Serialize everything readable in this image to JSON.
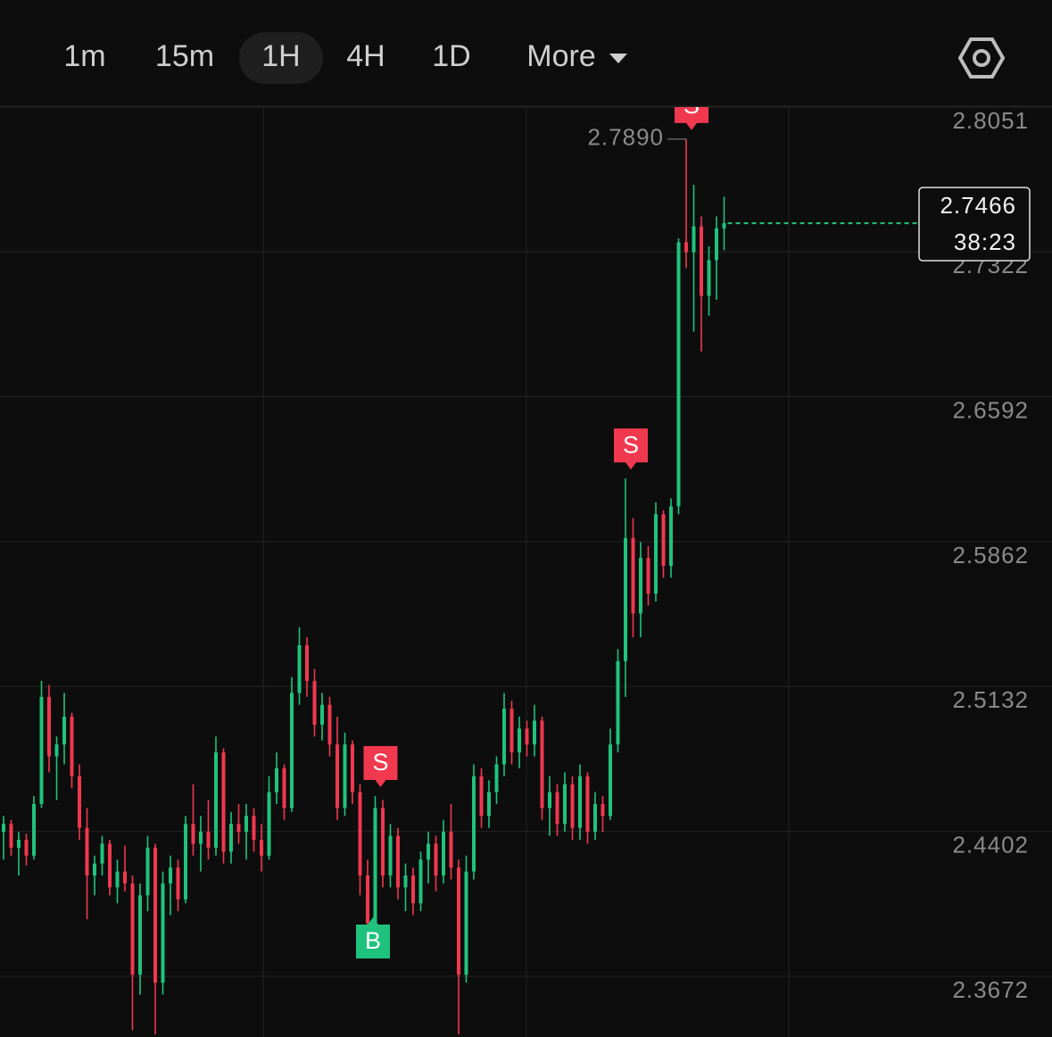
{
  "toolbar": {
    "intervals": [
      "1m",
      "15m",
      "1H",
      "4H",
      "1D"
    ],
    "selected": "1H",
    "more": "More"
  },
  "chart_data": {
    "type": "candlestick",
    "up_color": "#20c27c",
    "down_color": "#f0384f",
    "grid": true,
    "ylim": [
      2.3357,
      2.806
    ],
    "yticks": [
      2.8051,
      2.7322,
      2.6592,
      2.5862,
      2.5132,
      2.4402,
      2.3672
    ],
    "candles": {
      "open": [
        2.44,
        2.444,
        2.432,
        2.436,
        2.428,
        2.454,
        2.508,
        2.478,
        2.484,
        2.498,
        2.468,
        2.442,
        2.418,
        2.424,
        2.434,
        2.412,
        2.42,
        2.414,
        2.368,
        2.408,
        2.432,
        2.364,
        2.414,
        2.422,
        2.406,
        2.444,
        2.434,
        2.44,
        2.432,
        2.48,
        2.43,
        2.444,
        2.44,
        2.448,
        2.436,
        2.428,
        2.46,
        2.472,
        2.452,
        2.51,
        2.534,
        2.516,
        2.494,
        2.504,
        2.484,
        2.452,
        2.484,
        2.46,
        2.418,
        2.394,
        2.452,
        2.418,
        2.438,
        2.412,
        2.418,
        2.404,
        2.426,
        2.434,
        2.418,
        2.44,
        2.422,
        2.368,
        2.42,
        2.468,
        2.448,
        2.46,
        2.474,
        2.502,
        2.48,
        2.492,
        2.484,
        2.496,
        2.452,
        2.46,
        2.444,
        2.464,
        2.442,
        2.468,
        2.44,
        2.454,
        2.448,
        2.484,
        2.526,
        2.588,
        2.55,
        2.578,
        2.56,
        2.6,
        2.574,
        2.604,
        2.737,
        2.732,
        2.745,
        2.71,
        2.728,
        2.744
      ],
      "high": [
        2.448,
        2.446,
        2.44,
        2.439,
        2.458,
        2.516,
        2.514,
        2.488,
        2.51,
        2.5,
        2.474,
        2.452,
        2.428,
        2.438,
        2.436,
        2.426,
        2.433,
        2.418,
        2.414,
        2.438,
        2.434,
        2.42,
        2.428,
        2.426,
        2.448,
        2.464,
        2.448,
        2.456,
        2.488,
        2.482,
        2.45,
        2.454,
        2.454,
        2.452,
        2.444,
        2.468,
        2.48,
        2.474,
        2.518,
        2.543,
        2.538,
        2.522,
        2.51,
        2.508,
        2.498,
        2.49,
        2.486,
        2.464,
        2.426,
        2.458,
        2.456,
        2.444,
        2.442,
        2.424,
        2.422,
        2.43,
        2.44,
        2.438,
        2.446,
        2.454,
        2.426,
        2.428,
        2.474,
        2.472,
        2.466,
        2.478,
        2.51,
        2.506,
        2.498,
        2.496,
        2.504,
        2.498,
        2.468,
        2.464,
        2.47,
        2.468,
        2.474,
        2.47,
        2.46,
        2.458,
        2.492,
        2.532,
        2.618,
        2.598,
        2.586,
        2.584,
        2.606,
        2.602,
        2.608,
        2.739,
        2.789,
        2.766,
        2.75,
        2.735,
        2.75,
        2.76
      ],
      "low": [
        2.426,
        2.428,
        2.418,
        2.423,
        2.426,
        2.452,
        2.47,
        2.456,
        2.474,
        2.462,
        2.436,
        2.396,
        2.408,
        2.418,
        2.408,
        2.404,
        2.41,
        2.34,
        2.358,
        2.4,
        2.338,
        2.358,
        2.398,
        2.4,
        2.404,
        2.428,
        2.42,
        2.426,
        2.428,
        2.424,
        2.424,
        2.434,
        2.426,
        2.43,
        2.42,
        2.426,
        2.454,
        2.446,
        2.45,
        2.504,
        2.508,
        2.488,
        2.486,
        2.478,
        2.446,
        2.448,
        2.454,
        2.408,
        2.387,
        2.392,
        2.412,
        2.412,
        2.406,
        2.4,
        2.398,
        2.4,
        2.414,
        2.41,
        2.414,
        2.416,
        2.338,
        2.364,
        2.416,
        2.442,
        2.442,
        2.454,
        2.468,
        2.474,
        2.472,
        2.478,
        2.478,
        2.446,
        2.438,
        2.438,
        2.44,
        2.436,
        2.436,
        2.434,
        2.436,
        2.44,
        2.446,
        2.48,
        2.508,
        2.538,
        2.538,
        2.554,
        2.556,
        2.568,
        2.568,
        2.6,
        2.724,
        2.692,
        2.682,
        2.7,
        2.708,
        2.733
      ],
      "close": [
        2.444,
        2.432,
        2.436,
        2.428,
        2.454,
        2.508,
        2.478,
        2.484,
        2.498,
        2.468,
        2.442,
        2.418,
        2.424,
        2.434,
        2.412,
        2.42,
        2.414,
        2.368,
        2.408,
        2.432,
        2.364,
        2.414,
        2.422,
        2.406,
        2.444,
        2.434,
        2.44,
        2.432,
        2.48,
        2.43,
        2.444,
        2.44,
        2.448,
        2.436,
        2.428,
        2.46,
        2.472,
        2.452,
        2.51,
        2.534,
        2.516,
        2.494,
        2.504,
        2.484,
        2.452,
        2.484,
        2.46,
        2.418,
        2.394,
        2.452,
        2.418,
        2.438,
        2.412,
        2.418,
        2.404,
        2.426,
        2.434,
        2.418,
        2.44,
        2.422,
        2.368,
        2.42,
        2.468,
        2.448,
        2.46,
        2.474,
        2.502,
        2.48,
        2.492,
        2.484,
        2.496,
        2.452,
        2.46,
        2.444,
        2.464,
        2.442,
        2.468,
        2.44,
        2.454,
        2.448,
        2.484,
        2.526,
        2.588,
        2.55,
        2.578,
        2.56,
        2.6,
        2.574,
        2.604,
        2.737,
        2.732,
        2.745,
        2.71,
        2.728,
        2.744,
        2.7466
      ]
    },
    "signals": [
      null,
      null,
      null,
      null,
      null,
      null,
      null,
      null,
      null,
      null,
      null,
      null,
      null,
      null,
      null,
      null,
      null,
      null,
      null,
      null,
      null,
      null,
      null,
      null,
      null,
      null,
      null,
      null,
      null,
      null,
      null,
      null,
      null,
      null,
      null,
      null,
      null,
      null,
      null,
      null,
      null,
      null,
      null,
      null,
      null,
      null,
      null,
      null,
      "B",
      "S",
      null,
      null,
      null,
      null,
      null,
      null,
      null,
      null,
      null,
      null,
      null,
      null,
      null,
      null,
      null,
      null,
      null,
      null,
      null,
      null,
      null,
      null,
      null,
      null,
      null,
      null,
      null,
      null,
      null,
      null,
      null,
      null,
      "S",
      null,
      null,
      null,
      null,
      null,
      null,
      null,
      "S",
      null,
      null,
      null,
      null,
      null
    ],
    "high_label": {
      "value": 2.789,
      "label": "2.7890"
    },
    "last_price": 2.7466,
    "countdown": "38:23"
  }
}
